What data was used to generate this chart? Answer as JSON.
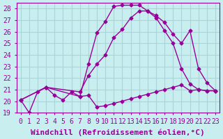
{
  "bg_color": "#c8eef0",
  "grid_color": "#aad4d8",
  "line_color": "#990099",
  "xlim": [
    -0.5,
    23.5
  ],
  "ylim": [
    19,
    28.5
  ],
  "xticks": [
    0,
    1,
    2,
    3,
    4,
    5,
    6,
    7,
    8,
    9,
    10,
    11,
    12,
    13,
    14,
    15,
    16,
    17,
    18,
    19,
    20,
    21,
    22,
    23
  ],
  "yticks": [
    19,
    20,
    21,
    22,
    23,
    24,
    25,
    26,
    27,
    28
  ],
  "line1_x": [
    0,
    1,
    2,
    3,
    4,
    5,
    6,
    7,
    8,
    9,
    10,
    11,
    12,
    13,
    14,
    15,
    16,
    17,
    18,
    19,
    20,
    21,
    22,
    23
  ],
  "line1_y": [
    20.1,
    19.0,
    20.8,
    21.2,
    20.5,
    20.1,
    20.8,
    20.4,
    23.2,
    25.9,
    26.9,
    28.2,
    28.3,
    28.3,
    28.3,
    27.8,
    27.2,
    26.1,
    25.0,
    22.8,
    21.5,
    21.0,
    20.9,
    20.9
  ],
  "line2_x": [
    0,
    3,
    7,
    8,
    9,
    10,
    11,
    12,
    13,
    14,
    15,
    16,
    17,
    18,
    19,
    20,
    21,
    22,
    23
  ],
  "line2_y": [
    20.1,
    21.2,
    20.8,
    22.2,
    23.2,
    24.0,
    25.5,
    26.2,
    27.2,
    27.8,
    27.8,
    27.4,
    26.8,
    25.8,
    25.0,
    26.1,
    22.8,
    21.6,
    20.9
  ],
  "line3_x": [
    0,
    3,
    7,
    8,
    9,
    10,
    11,
    12,
    13,
    14,
    15,
    16,
    17,
    18,
    19,
    20,
    21,
    22,
    23
  ],
  "line3_y": [
    20.1,
    21.2,
    20.4,
    20.5,
    19.5,
    19.6,
    19.8,
    20.0,
    20.2,
    20.4,
    20.6,
    20.8,
    21.0,
    21.2,
    21.4,
    20.9,
    21.0,
    20.9,
    20.9
  ],
  "xlabel": "Windchill (Refroidissement éolien,°C)",
  "xlabel_fontsize": 8,
  "tick_fontsize": 7
}
